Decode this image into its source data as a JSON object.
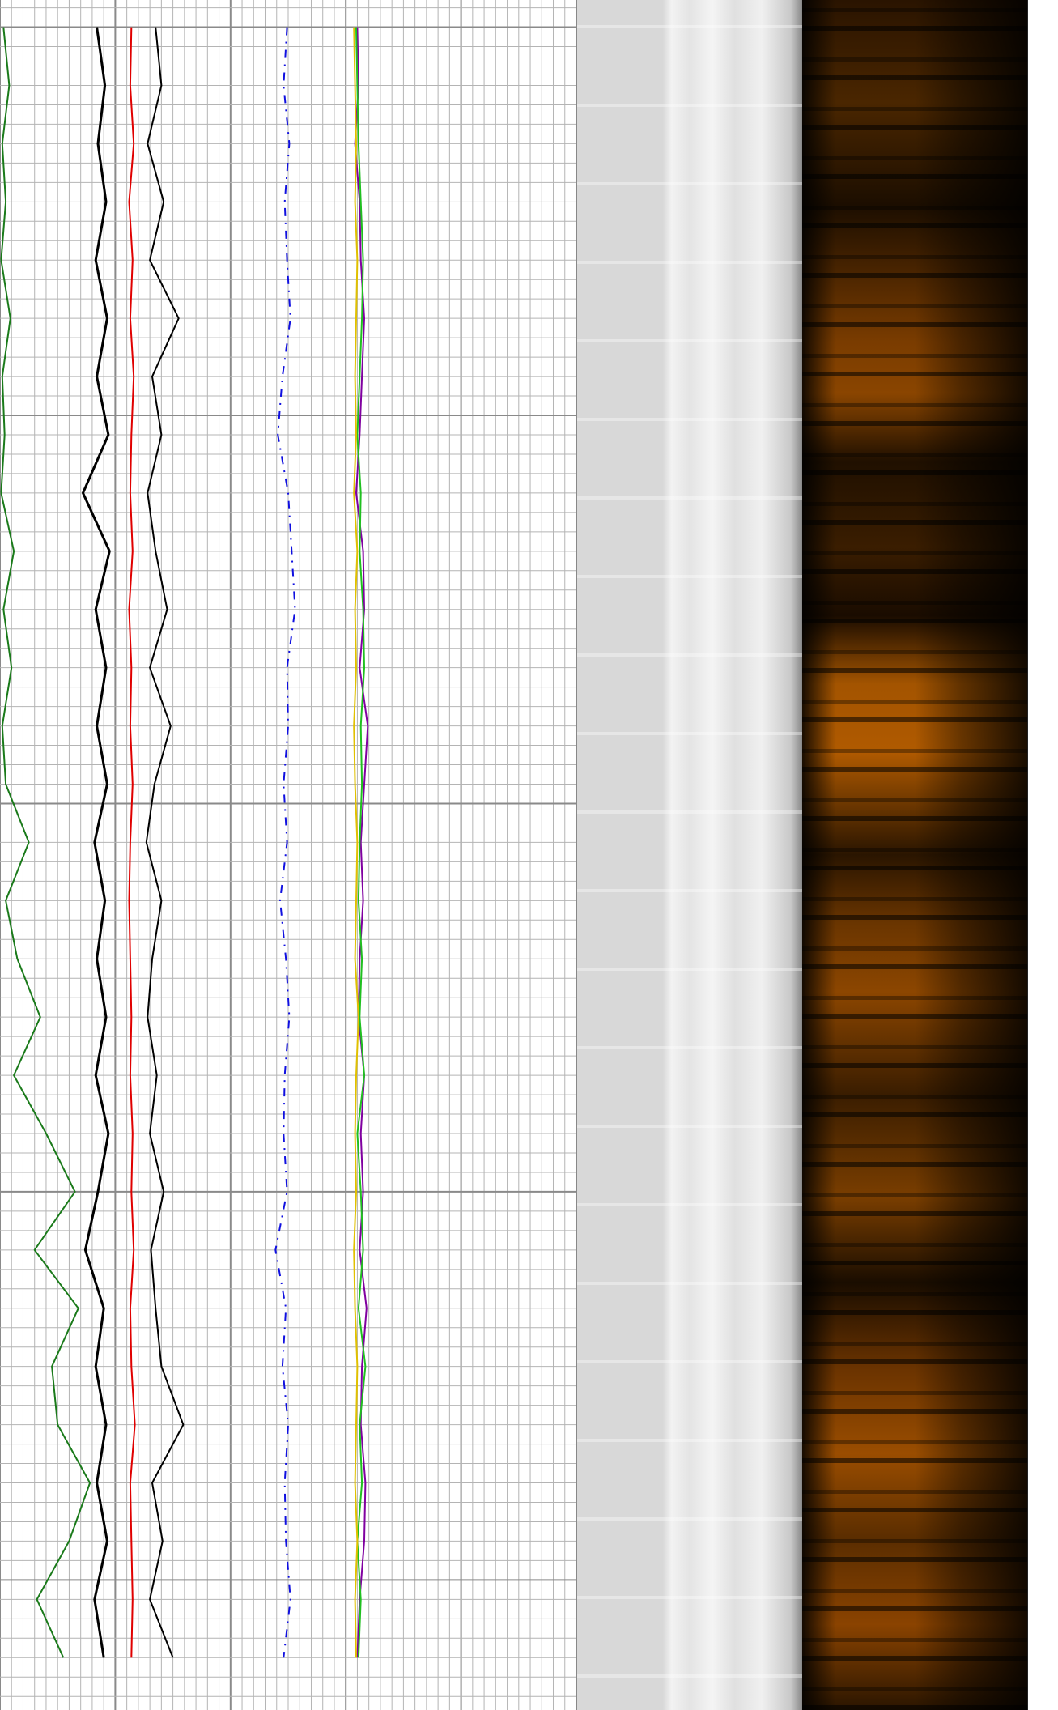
{
  "chart_data": {
    "type": "line",
    "xlim": [
      0,
      50
    ],
    "xticks": [
      0,
      1,
      2,
      3,
      4,
      5,
      6,
      7,
      8,
      9,
      10,
      11,
      12,
      13,
      14,
      15,
      16,
      17,
      18,
      19,
      20,
      21,
      22,
      23,
      24,
      25,
      26,
      27,
      28,
      29,
      30,
      31,
      32,
      33,
      34,
      35,
      36,
      37,
      38,
      39,
      40,
      41,
      42,
      43,
      44,
      45,
      46,
      47,
      48,
      49,
      50
    ],
    "ylim": [
      -1.4,
      86.7
    ],
    "yticks": [
      -1,
      0,
      1,
      2,
      3,
      4,
      5,
      6,
      7,
      8,
      9,
      10,
      11,
      12,
      13,
      14,
      15,
      16,
      17,
      18,
      19,
      20,
      21,
      22,
      23,
      24,
      25,
      26,
      27,
      28,
      29,
      30,
      31,
      32,
      33,
      34,
      35,
      36,
      37,
      38,
      39,
      40,
      41,
      42,
      43,
      44,
      45,
      46,
      47,
      48,
      49,
      50,
      51,
      52,
      53,
      54,
      55,
      56,
      57,
      58,
      59,
      60,
      61,
      62,
      63,
      64,
      65,
      66,
      67,
      68,
      69,
      70,
      71,
      72,
      73,
      74,
      75,
      76,
      77,
      78,
      79,
      80,
      81,
      82,
      83,
      84,
      85,
      86
    ],
    "grid": true,
    "y": [
      0,
      3,
      6,
      9,
      12,
      15,
      18,
      21,
      24,
      27,
      30,
      33,
      36,
      39,
      42,
      45,
      48,
      51,
      54,
      57,
      60,
      63,
      66,
      69,
      72,
      75,
      78,
      81,
      84
    ],
    "series": [
      {
        "color": "#1a7a1a",
        "values": [
          0.3,
          0.8,
          0.2,
          0.5,
          0.1,
          0.9,
          0.2,
          0.4,
          0.1,
          1.2,
          0.3,
          1.0,
          0.2,
          0.5,
          2.5,
          0.5,
          1.5,
          3.5,
          1.2,
          4.0,
          6.5,
          3.0,
          6.8,
          4.5,
          5.0,
          7.8,
          6.0,
          3.2,
          5.5
        ]
      },
      {
        "color": "#000000",
        "values": [
          8.4,
          9.1,
          8.5,
          9.2,
          8.3,
          9.3,
          8.4,
          9.4,
          7.2,
          9.5,
          8.3,
          9.2,
          8.4,
          9.3,
          8.2,
          9.1,
          8.4,
          9.2,
          8.3,
          9.4,
          8.5,
          7.4,
          9.0,
          8.3,
          9.2,
          8.4,
          9.3,
          8.2,
          9.0
        ]
      },
      {
        "color": "#e00000",
        "values": [
          11.4,
          11.3,
          11.6,
          11.2,
          11.5,
          11.3,
          11.6,
          11.4,
          11.3,
          11.5,
          11.2,
          11.4,
          11.3,
          11.5,
          11.3,
          11.2,
          11.3,
          11.4,
          11.3,
          11.5,
          11.4,
          11.6,
          11.3,
          11.4,
          11.7,
          11.3,
          11.4,
          11.5,
          11.4
        ]
      },
      {
        "color": "#000000",
        "values": [
          13.5,
          14.0,
          12.8,
          14.2,
          13.0,
          15.5,
          13.2,
          14.0,
          12.8,
          13.5,
          14.5,
          13.0,
          14.8,
          13.4,
          12.7,
          14.0,
          13.2,
          12.8,
          13.6,
          13.0,
          14.2,
          13.1,
          13.5,
          14.0,
          15.9,
          13.2,
          14.1,
          13.0,
          15.0
        ]
      },
      {
        "color": "#1010e0",
        "dashed": true,
        "values": [
          24.9,
          24.6,
          25.1,
          24.7,
          24.9,
          25.2,
          24.5,
          24.1,
          25.0,
          25.3,
          25.6,
          24.9,
          25.0,
          24.6,
          24.9,
          24.3,
          24.8,
          25.1,
          24.7,
          24.6,
          24.9,
          23.9,
          24.8,
          24.5,
          25.0,
          24.7,
          24.8,
          25.2,
          24.6
        ]
      },
      {
        "color": "#8000a0",
        "values": [
          31.0,
          31.1,
          30.8,
          31.2,
          31.3,
          31.6,
          31.4,
          31.2,
          30.9,
          31.5,
          31.6,
          31.2,
          31.9,
          31.6,
          31.3,
          31.5,
          31.2,
          31.1,
          31.6,
          31.3,
          31.5,
          31.2,
          31.8,
          31.4,
          31.3,
          31.7,
          31.6,
          31.2,
          31.0
        ]
      },
      {
        "color": "#20c020",
        "values": [
          30.9,
          31.0,
          31.1,
          31.3,
          31.5,
          31.4,
          31.2,
          31.0,
          31.3,
          31.2,
          31.5,
          31.6,
          31.3,
          31.4,
          31.2,
          31.1,
          31.4,
          31.2,
          31.6,
          31.0,
          31.3,
          31.5,
          31.1,
          31.7,
          31.2,
          31.4,
          31.0,
          31.3,
          31.1
        ]
      },
      {
        "color": "#e0c000",
        "values": [
          30.7,
          30.8,
          30.9,
          30.8,
          31.0,
          30.9,
          30.8,
          30.9,
          30.7,
          31.0,
          30.8,
          30.9,
          30.7,
          30.8,
          31.0,
          30.9,
          30.8,
          31.1,
          30.9,
          30.8,
          30.9,
          30.7,
          30.8,
          31.0,
          30.9,
          30.8,
          31.0,
          30.8,
          30.9
        ]
      }
    ]
  }
}
